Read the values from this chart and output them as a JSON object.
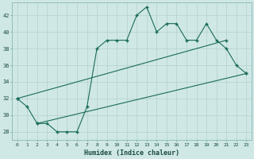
{
  "xlabel": "Humidex (Indice chaleur)",
  "bg_color": "#cfe8e5",
  "line_color": "#1a6b5a",
  "grid_color": "#b8d4d0",
  "xlim": [
    -0.5,
    23.5
  ],
  "ylim": [
    27,
    43.5
  ],
  "yticks": [
    28,
    30,
    32,
    34,
    36,
    38,
    40,
    42
  ],
  "xticks": [
    0,
    1,
    2,
    3,
    4,
    5,
    6,
    7,
    8,
    9,
    10,
    11,
    12,
    13,
    14,
    15,
    16,
    17,
    18,
    19,
    20,
    21,
    22,
    23
  ],
  "series1_x": [
    0,
    1,
    2,
    3,
    4,
    5,
    6,
    7,
    8,
    9,
    10,
    11,
    12,
    13,
    14,
    15,
    16,
    17,
    18,
    19,
    20,
    21,
    22,
    23
  ],
  "series1_y": [
    32,
    31,
    29,
    29,
    28,
    28,
    28,
    31,
    38,
    39,
    39,
    39,
    42,
    43,
    40,
    41,
    41,
    39,
    39,
    41,
    39,
    38,
    36,
    35
  ],
  "series2_x": [
    0,
    21
  ],
  "series2_y": [
    32,
    39
  ],
  "series3_x": [
    2,
    23
  ],
  "series3_y": [
    29,
    35
  ]
}
